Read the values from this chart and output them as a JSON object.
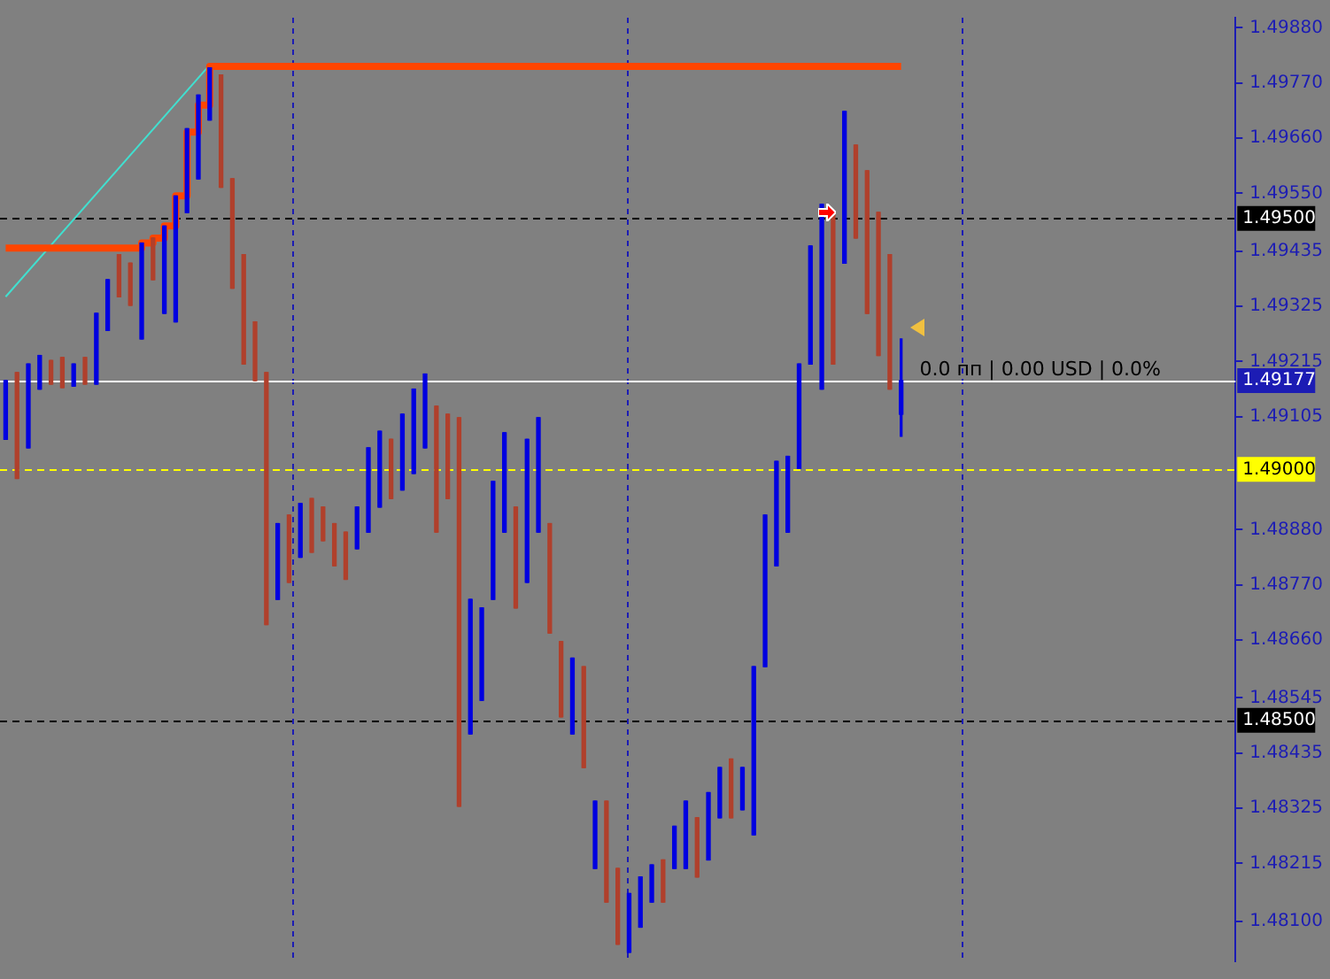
{
  "chart_data": {
    "type": "candlestick",
    "categories": [
      null,
      null,
      null,
      null,
      null,
      null,
      null,
      null,
      null,
      null,
      null,
      null,
      null,
      null,
      null,
      null,
      null,
      null,
      null,
      null,
      null,
      null,
      null,
      null,
      null,
      null,
      null,
      null,
      null,
      null,
      null,
      null,
      null,
      null,
      null,
      null,
      null,
      null,
      null,
      null,
      null,
      null,
      null,
      null,
      null,
      null,
      null,
      null,
      null,
      null,
      null,
      null,
      null,
      null,
      null,
      null,
      null,
      null,
      null,
      null,
      null,
      null,
      null,
      null,
      null,
      null,
      null,
      null,
      null,
      null,
      null,
      null,
      null,
      null,
      null,
      null,
      null,
      null,
      null,
      null,
      null,
      null,
      null,
      null,
      null,
      null,
      null,
      null,
      null,
      null,
      null,
      null,
      null,
      null,
      null,
      null,
      null,
      null,
      null,
      null,
      null,
      null,
      null,
      null,
      null,
      null,
      null,
      null,
      null
    ],
    "ohlc": [
      [
        1.4906,
        1.49177,
        1.4906,
        1.49177
      ],
      [
        1.49193,
        1.49193,
        1.48982,
        1.48982
      ],
      [
        1.49043,
        1.4921,
        1.49043,
        1.4921
      ],
      [
        1.4916,
        1.49227,
        1.4916,
        1.49227
      ],
      [
        1.49217,
        1.49217,
        1.4917,
        1.4917
      ],
      [
        1.49223,
        1.49223,
        1.49163,
        1.49163
      ],
      [
        1.49166,
        1.4921,
        1.49166,
        1.4921
      ],
      [
        1.49223,
        1.49223,
        1.4917,
        1.4917
      ],
      [
        1.4917,
        1.49311,
        1.4917,
        1.49311
      ],
      [
        1.49277,
        1.49378,
        1.49277,
        1.49378
      ],
      [
        1.49428,
        1.49428,
        1.49344,
        1.49344
      ],
      [
        1.49411,
        1.49411,
        1.49327,
        1.49327
      ],
      [
        1.4926,
        1.49451,
        1.4926,
        1.49451
      ],
      [
        1.49461,
        1.49461,
        1.49378,
        1.49378
      ],
      [
        1.49311,
        1.49485,
        1.49311,
        1.49485
      ],
      [
        1.49294,
        1.49545,
        1.49294,
        1.49545
      ],
      [
        1.49512,
        1.49679,
        1.49512,
        1.49679
      ],
      [
        1.49579,
        1.49746,
        1.49579,
        1.49746
      ],
      [
        1.49696,
        1.498,
        1.49696,
        1.498
      ],
      [
        1.49786,
        1.49786,
        1.49562,
        1.49562
      ],
      [
        1.49579,
        1.49579,
        1.49361,
        1.49361
      ],
      [
        1.49428,
        1.49428,
        1.4921,
        1.4921
      ],
      [
        1.49294,
        1.49294,
        1.49177,
        1.49177
      ],
      [
        1.49193,
        1.49193,
        1.48691,
        1.48691
      ],
      [
        1.48741,
        1.48892,
        1.48741,
        1.48892
      ],
      [
        1.48909,
        1.48909,
        1.48775,
        1.48775
      ],
      [
        1.48825,
        1.48932,
        1.48825,
        1.48932
      ],
      [
        1.48942,
        1.48942,
        1.48835,
        1.48835
      ],
      [
        1.48925,
        1.48925,
        1.48858,
        1.48858
      ],
      [
        1.48892,
        1.48892,
        1.48808,
        1.48808
      ],
      [
        1.48875,
        1.48875,
        1.48781,
        1.48781
      ],
      [
        1.48842,
        1.48925,
        1.48842,
        1.48925
      ],
      [
        1.48875,
        1.49043,
        1.48875,
        1.49043
      ],
      [
        1.48925,
        1.49076,
        1.48925,
        1.49076
      ],
      [
        1.4906,
        1.4906,
        1.48942,
        1.48942
      ],
      [
        1.48959,
        1.4911,
        1.48959,
        1.4911
      ],
      [
        1.48992,
        1.4916,
        1.48992,
        1.4916
      ],
      [
        1.49043,
        1.4919,
        1.49043,
        1.4919
      ],
      [
        1.49126,
        1.49126,
        1.48875,
        1.48875
      ],
      [
        1.4911,
        1.4911,
        1.48942,
        1.48942
      ],
      [
        1.49103,
        1.49103,
        1.48329,
        1.48329
      ],
      [
        1.48473,
        1.48741,
        1.48473,
        1.48741
      ],
      [
        1.4854,
        1.48724,
        1.4854,
        1.48724
      ],
      [
        1.48741,
        1.48976,
        1.48741,
        1.48976
      ],
      [
        1.48875,
        1.49073,
        1.48875,
        1.49073
      ],
      [
        1.48925,
        1.48925,
        1.48724,
        1.48724
      ],
      [
        1.48775,
        1.4906,
        1.48775,
        1.4906
      ],
      [
        1.48875,
        1.49103,
        1.48875,
        1.49103
      ],
      [
        1.48892,
        1.48892,
        1.48674,
        1.48674
      ],
      [
        1.48657,
        1.48657,
        1.48507,
        1.48507
      ],
      [
        1.48473,
        1.48624,
        1.48473,
        1.48624
      ],
      [
        1.48607,
        1.48607,
        1.48406,
        1.48406
      ],
      [
        1.48205,
        1.48339,
        1.48205,
        1.48339
      ],
      [
        1.48339,
        1.48339,
        1.48138,
        1.48138
      ],
      [
        1.48205,
        1.48205,
        1.48054,
        1.48054
      ],
      [
        1.48038,
        1.48155,
        1.48038,
        1.48155
      ],
      [
        1.48088,
        1.48188,
        1.48088,
        1.48188
      ],
      [
        1.48138,
        1.48212,
        1.48138,
        1.48212
      ],
      [
        1.48222,
        1.48222,
        1.48138,
        1.48138
      ],
      [
        1.48205,
        1.48289,
        1.48205,
        1.48289
      ],
      [
        1.48205,
        1.48339,
        1.48205,
        1.48339
      ],
      [
        1.48306,
        1.48306,
        1.48188,
        1.48188
      ],
      [
        1.48222,
        1.48356,
        1.48222,
        1.48356
      ],
      [
        1.48306,
        1.48406,
        1.48306,
        1.48406
      ],
      [
        1.48423,
        1.48423,
        1.48306,
        1.48306
      ],
      [
        1.48322,
        1.48406,
        1.48322,
        1.48406
      ],
      [
        1.48272,
        1.48607,
        1.48272,
        1.48607
      ],
      [
        1.48607,
        1.48909,
        1.48607,
        1.48909
      ],
      [
        1.48808,
        1.49016,
        1.48808,
        1.49016
      ],
      [
        1.48875,
        1.49026,
        1.48875,
        1.49026
      ],
      [
        1.49002,
        1.4921,
        1.49002,
        1.4921
      ],
      [
        1.4921,
        1.49445,
        1.4921,
        1.49445
      ],
      [
        1.4916,
        1.49528,
        1.4916,
        1.49528
      ],
      [
        1.49512,
        1.49512,
        1.4921,
        1.4921
      ],
      [
        1.49411,
        1.49713,
        1.49411,
        1.49713
      ],
      [
        1.49646,
        1.49646,
        1.49461,
        1.49461
      ],
      [
        1.49595,
        1.49595,
        1.49311,
        1.49311
      ],
      [
        1.49512,
        1.49512,
        1.49227,
        1.49227
      ],
      [
        1.49428,
        1.49428,
        1.4916,
        1.4916
      ],
      [
        1.4911,
        1.4926,
        1.49066,
        1.49177
      ],
      null,
      null,
      null,
      null,
      null,
      null,
      null,
      null,
      null,
      null,
      null,
      null,
      null,
      null,
      null,
      null,
      null,
      null,
      null,
      null,
      null,
      null,
      null,
      null,
      null,
      null,
      null,
      null,
      null
    ],
    "series": [
      {
        "type": "step",
        "color": "#ff4500",
        "values": [
          1.49441,
          1.49441,
          1.49441,
          1.49441,
          1.49441,
          1.49441,
          1.49441,
          1.49441,
          1.49441,
          1.49441,
          1.49441,
          1.49441,
          1.49451,
          1.49461,
          1.49485,
          1.49545,
          1.49672,
          1.49726,
          1.49803,
          1.49803,
          1.49803,
          1.49803,
          1.49803,
          1.49803,
          1.49803,
          1.49803,
          1.49803,
          1.49803,
          1.49803,
          1.49803,
          1.49803,
          1.49803,
          1.49803,
          1.49803,
          1.49803,
          1.49803,
          1.49803,
          1.49803,
          1.49803,
          1.49803,
          1.49803,
          1.49803,
          1.49803,
          1.49803,
          1.49803,
          1.49803,
          1.49803,
          1.49803,
          1.49803,
          1.49803,
          1.49803,
          1.49803,
          1.49803,
          1.49803,
          1.49803,
          1.49803,
          1.49803,
          1.49803,
          1.49803,
          1.49803,
          1.49803,
          1.49803,
          1.49803,
          1.49803,
          1.49803,
          1.49803,
          1.49803,
          1.49803,
          1.49803,
          1.49803,
          1.49803,
          1.49803,
          1.49803,
          1.49803,
          1.49803,
          1.49803,
          1.49803,
          1.49803,
          1.49803,
          1.49803,
          null,
          null,
          null,
          null,
          null,
          null,
          null,
          null,
          null,
          null,
          null,
          null,
          null,
          null,
          null,
          null,
          null,
          null,
          null,
          null,
          null,
          null,
          null,
          null,
          null,
          null,
          null,
          null,
          null
        ]
      },
      {
        "type": "line",
        "color": "#40e0d0",
        "values": [
          1.49344,
          null,
          null,
          null,
          null,
          null,
          null,
          null,
          null,
          null,
          null,
          null,
          null,
          null,
          null,
          null,
          null,
          null,
          1.49806,
          null,
          null,
          null,
          null,
          null,
          null,
          null,
          null,
          null,
          null,
          null,
          null,
          null,
          null,
          null,
          null,
          null,
          null,
          null,
          null,
          null,
          null,
          null,
          null,
          null,
          null,
          null,
          null,
          null,
          null,
          null,
          null,
          null,
          null,
          null,
          null,
          null,
          null,
          null,
          null,
          null,
          null,
          null,
          null,
          null,
          null,
          null,
          null,
          null,
          null,
          null,
          null,
          null,
          null,
          null,
          null,
          null,
          null,
          null,
          null,
          null,
          null,
          null,
          null,
          null,
          null,
          null,
          null,
          null,
          null,
          null,
          null,
          null,
          null,
          null,
          null,
          null,
          null,
          null,
          null,
          null,
          null,
          null,
          null,
          null,
          null,
          null,
          null,
          null,
          null
        ]
      }
    ],
    "ylim": [
      1.4802,
      1.499
    ],
    "yticks": [
      {
        "value": 1.4988,
        "label": "1.49880"
      },
      {
        "value": 1.4977,
        "label": "1.49770"
      },
      {
        "value": 1.4966,
        "label": "1.49660"
      },
      {
        "value": 1.4955,
        "label": "1.49550"
      },
      1.49435,
      1.49325,
      1.49215,
      1.49105,
      {
        "value": 1.4888,
        "label": "1.48880"
      },
      {
        "value": 1.4877,
        "label": "1.48770"
      },
      {
        "value": 1.4866,
        "label": "1.48660"
      },
      1.48545,
      1.48435,
      1.48325,
      1.48215,
      {
        "value": 1.481,
        "label": "1.48100"
      }
    ],
    "ref_lines": [
      {
        "axis": "y",
        "value": 1.495,
        "label": "1.49500",
        "color": "#000000",
        "line_style": "dashed"
      },
      {
        "axis": "y",
        "value": 1.49177,
        "label": "1.49177",
        "color": "#ffffff",
        "line_style": "solid"
      },
      {
        "axis": "y",
        "value": 1.49,
        "label": "1.49000",
        "color": "#ffff00",
        "line_style": "dashed"
      },
      {
        "axis": "y",
        "value": 1.485,
        "label": "1.48500",
        "color": "#000000",
        "line_style": "dashed"
      }
    ],
    "annotations": [
      "0.0 пп | 0.00 USD | 0.0%"
    ]
  }
}
